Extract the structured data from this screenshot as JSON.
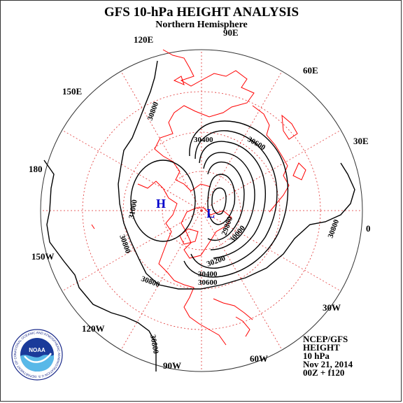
{
  "header": {
    "title": "GFS 10-hPa HEIGHT ANALYSIS",
    "subtitle": "Northern Hemisphere"
  },
  "longitude_labels": [
    "90E",
    "60E",
    "30E",
    "0",
    "30W",
    "60W",
    "90W",
    "120W",
    "150W",
    "180",
    "150E",
    "120E"
  ],
  "contour_labels": [
    "30800",
    "30400",
    "30600",
    "31000",
    "30800",
    "30800",
    "30800",
    "30800",
    "29800",
    "30000",
    "30200",
    "30400",
    "30600"
  ],
  "pressure_centers": [
    {
      "symbol": "H",
      "kind": "high"
    },
    {
      "symbol": "L",
      "kind": "low"
    }
  ],
  "info_block": [
    "NCEP/GFS",
    "HEIGHT",
    "10 hPa",
    "Nov 21, 2014",
    "00Z + f120"
  ],
  "logo": {
    "text": "NOAA",
    "ring_text": "NATIONAL OCEANIC AND ATMOSPHERIC ADMINISTRATION U.S. DEPARTMENT OF COMMERCE"
  },
  "colors": {
    "coastline": "#ff0000",
    "grid": "#e03030",
    "contour": "#000000",
    "center_symbol": "#0000cc"
  }
}
